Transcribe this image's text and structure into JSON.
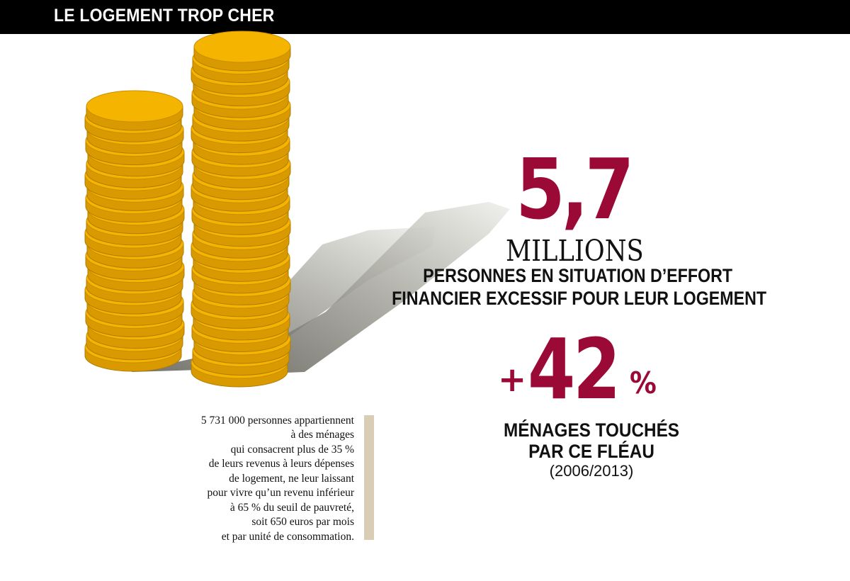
{
  "header": {
    "title": "LE LOGEMENT TROP CHER"
  },
  "colors": {
    "accent": "#9b0a36",
    "header_bg": "#000000",
    "coin_gold": "#f5b400",
    "coin_edge": "#d89a00",
    "note_bar": "#d9cdb6"
  },
  "illustration": {
    "icon": "coin-stacks-icon"
  },
  "stat1": {
    "value": "5,7",
    "unit": "MILLIONS",
    "caption_lines": [
      "PERSONNES EN SITUATION D’EFFORT",
      "FINANCIER EXCESSIF POUR LEUR LOGEMENT"
    ]
  },
  "stat2": {
    "plus": "+",
    "value": "42",
    "percent_sign": "%",
    "caption_lines": [
      "MÉNAGES TOUCHÉS",
      "PAR CE FLÉAU"
    ],
    "period": "(2006/2013)"
  },
  "note": {
    "lines": [
      "5 731 000 personnes appartiennent",
      "à des ménages",
      "qui consacrent plus de 35 %",
      "de leurs revenus à leurs dépenses",
      "de logement, ne leur laissant",
      "pour vivre qu’un revenu inférieur",
      "à 65 % du seuil de pauvreté,",
      "soit 650 euros par mois",
      "et par unité de consommation."
    ]
  }
}
